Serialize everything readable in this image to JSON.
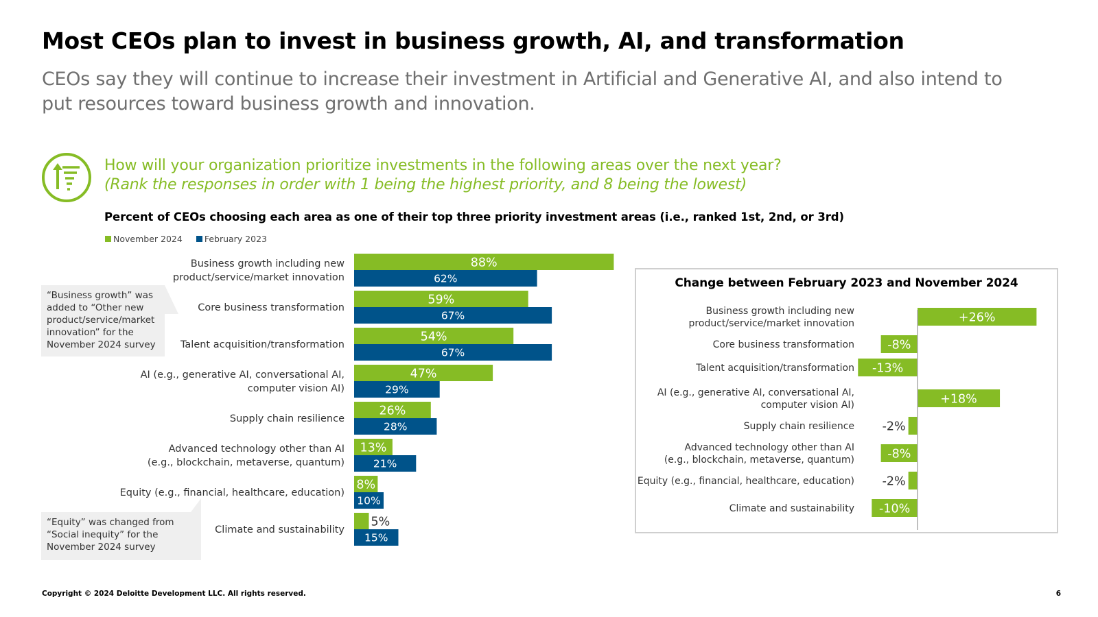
{
  "title": "Most CEOs plan to invest in business growth, AI, and transformation",
  "subtitle": "CEOs say they will continue to increase their investment in Artificial and Generative AI, and also intend to put resources toward business growth and innovation.",
  "question": "How will your organization prioritize investments in the following areas over the next year?",
  "question_note": "(Rank the responses in order with 1 being the highest priority, and 8 being the lowest)",
  "chart_heading": "Percent of CEOs choosing each area as one of their top three priority investment areas (i.e., ranked 1st, 2nd, or 3rd)",
  "icon": "ranked-list-icon",
  "colors": {
    "nov2024": "#86bc25",
    "feb2023": "#00538a",
    "text": "#333333",
    "accent_text": "#86bc25"
  },
  "callouts": {
    "business_growth": "“Business growth” was added  to “Other new product/service/market innovation” for the November 2024 survey",
    "equity": "“Equity” was changed from “Social inequity” for the November 2024 survey"
  },
  "chart_data": [
    {
      "type": "bar",
      "orientation": "horizontal",
      "title": "Percent of CEOs choosing each area as one of their top three priority investment areas (i.e., ranked 1st, 2nd, or 3rd)",
      "categories": [
        [
          "Business growth including new",
          "product/service/market innovation"
        ],
        [
          "Core business transformation"
        ],
        [
          "Talent acquisition/transformation"
        ],
        [
          "AI (e.g., generative AI, conversational AI,",
          "computer vision AI)"
        ],
        [
          "Supply chain resilience"
        ],
        [
          "Advanced technology other than AI",
          "(e.g., blockchain, metaverse, quantum)"
        ],
        [
          "Equity (e.g., financial, healthcare, education)"
        ],
        [
          "Climate and sustainability"
        ]
      ],
      "series": [
        {
          "name": "November 2024",
          "values": [
            88,
            59,
            54,
            47,
            26,
            13,
            8,
            5
          ],
          "labels": [
            "88%",
            "59%",
            "54%",
            "47%",
            "26%",
            "13%",
            "8%",
            "5%"
          ]
        },
        {
          "name": "February 2023",
          "values": [
            62,
            67,
            67,
            29,
            28,
            21,
            10,
            15
          ],
          "labels": [
            "62%",
            "67%",
            "67%",
            "29%",
            "28%",
            "21%",
            "10%",
            "15%"
          ]
        }
      ],
      "xlim": [
        0,
        100
      ],
      "legend": "top-left"
    },
    {
      "type": "bar",
      "orientation": "horizontal",
      "title": "Change between February 2023 and November 2024",
      "categories": [
        [
          "Business growth including new",
          "product/service/market innovation"
        ],
        [
          "Core business transformation"
        ],
        [
          "Talent acquisition/transformation"
        ],
        [
          "AI (e.g., generative AI, conversational AI,",
          "computer vision AI)"
        ],
        [
          "Supply chain resilience"
        ],
        [
          "Advanced technology other than AI",
          "(e.g., blockchain, metaverse, quantum)"
        ],
        [
          "Equity (e.g., financial, healthcare, education)"
        ],
        [
          "Climate and sustainability"
        ]
      ],
      "values": [
        26,
        -8,
        -13,
        18,
        -2,
        -8,
        -2,
        -10
      ],
      "labels": [
        "+26%",
        "-8%",
        "-13%",
        "+18%",
        "-2%",
        "-8%",
        "-2%",
        "-10%"
      ],
      "xlim": [
        -13,
        26
      ]
    }
  ],
  "footer": "Copyright © 2024 Deloitte Development LLC. All rights reserved.",
  "page_number": "6"
}
